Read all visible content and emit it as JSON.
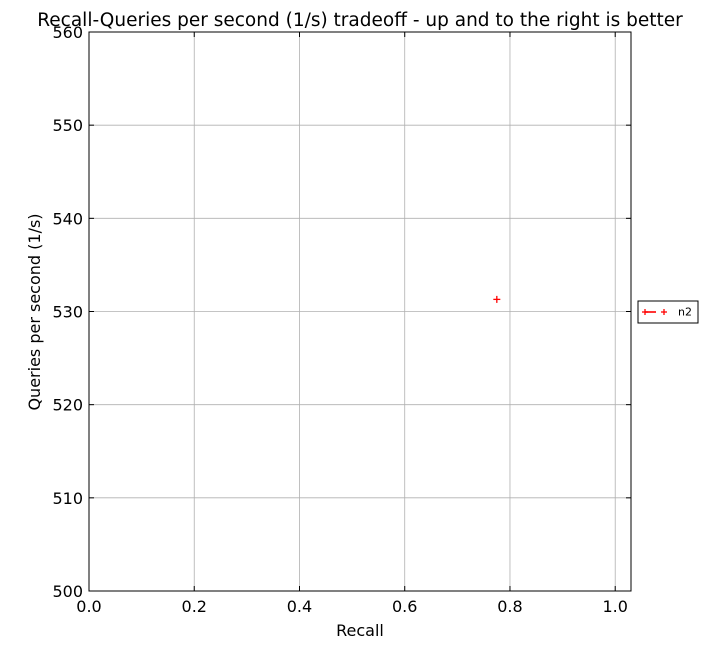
{
  "chart_data": {
    "type": "scatter",
    "title": "Recall-Queries per second (1/s) tradeoff - up and to the right is better",
    "xlabel": "Recall",
    "ylabel": "Queries per second (1/s)",
    "xlim": [
      0.0,
      1.03
    ],
    "ylim": [
      500,
      560
    ],
    "xticks": [
      0.0,
      0.2,
      0.4,
      0.6,
      0.8,
      1.0
    ],
    "xtick_labels": [
      "0.0",
      "0.2",
      "0.4",
      "0.6",
      "0.8",
      "1.0"
    ],
    "yticks": [
      500,
      510,
      520,
      530,
      540,
      550,
      560
    ],
    "ytick_labels": [
      "500",
      "510",
      "520",
      "530",
      "540",
      "550",
      "560"
    ],
    "grid": true,
    "legend_position": "right-outside",
    "series": [
      {
        "name": "n2",
        "color": "#ff0000",
        "marker": "+",
        "points": [
          {
            "x": 0.775,
            "y": 531.3
          }
        ]
      }
    ]
  }
}
